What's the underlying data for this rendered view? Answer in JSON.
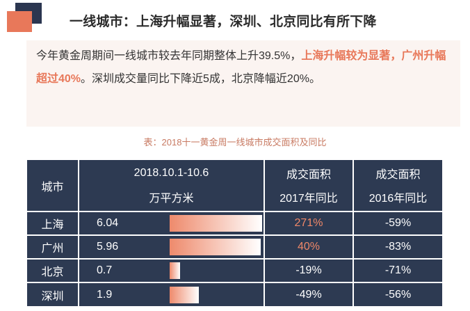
{
  "header": {
    "title": "一线城市：上海升幅显著，深圳、北京同比有所下降"
  },
  "summary": {
    "part1": "今年黄金周期间一线城市较去年同期整体上升39.5%，",
    "highlight": "上海升幅较为显著，广州升幅超过40%",
    "part2": "。深圳成交量同比下降近5成，北京降幅近20%。"
  },
  "table": {
    "caption": "表：2018十一黄金周一线城市成交面积及同比",
    "headers": {
      "city": "城市",
      "period": "2018.10.1-10.6",
      "unit": "万平方米",
      "yoy_label": "成交面积",
      "yoy2017": "2017年同比",
      "yoy2016": "2016年同比"
    },
    "rows": [
      {
        "city": "上海",
        "area": "6.04",
        "area_value": 6.04,
        "yoy2017": "271%",
        "yoy2016": "-59%"
      },
      {
        "city": "广州",
        "area": "5.96",
        "area_value": 5.96,
        "yoy2017": "40%",
        "yoy2016": "-83%"
      },
      {
        "city": "北京",
        "area": "0.7",
        "area_value": 0.7,
        "yoy2017": "-19%",
        "yoy2016": "-71%"
      },
      {
        "city": "深圳",
        "area": "1.9",
        "area_value": 1.9,
        "yoy2017": "-49%",
        "yoy2016": "-56%"
      }
    ],
    "colors": {
      "table_bg": "#2d3a52",
      "accent": "#e8785a",
      "highlight_text": "#f08868"
    }
  }
}
